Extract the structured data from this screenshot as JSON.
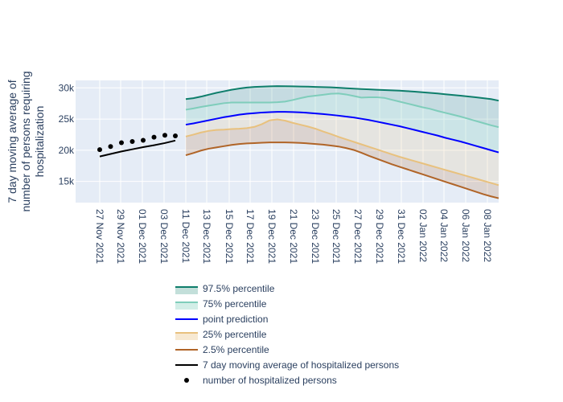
{
  "chart_data": {
    "type": "line",
    "title": "",
    "xlabel": "",
    "ylabel": [
      "7 day moving average of",
      "number of persons requiring",
      "hospitalization"
    ],
    "x_ticks": [
      "27 Nov 2021",
      "29 Nov 2021",
      "01 Dec 2021",
      "03 Dec 2021",
      "11 Dec 2021",
      "13 Dec 2021",
      "15 Dec 2021",
      "17 Dec 2021",
      "19 Dec 2021",
      "21 Dec 2021",
      "23 Dec 2021",
      "25 Dec 2021",
      "27 Dec 2021",
      "29 Dec 2021",
      "31 Dec 2021",
      "02 Jan 2022",
      "04 Jan 2022",
      "06 Jan 2022",
      "08 Jan 2022"
    ],
    "y_ticks": [
      "15k",
      "20k",
      "25k",
      "30k"
    ],
    "y_tick_values": [
      15000,
      20000,
      25000,
      30000
    ],
    "ylim": [
      11600,
      31200
    ],
    "grid": true,
    "legend_position": "bottom",
    "colors": {
      "plot_bg": "#e5ecf6",
      "p97_5": "#0e7e6b",
      "p75": "#7fcdbb",
      "point": "#0000ff",
      "p25": "#e8c17e",
      "p2_5": "#b06427",
      "observed_avg": "#000000",
      "observed_points": "#000000",
      "band_outer": "rgba(14,126,107,0.15)",
      "band_inner": "rgba(232,193,126,0.18)"
    },
    "observed": {
      "x": [
        0,
        1,
        2,
        3,
        4,
        5,
        6,
        7
      ],
      "moving_average": [
        19000,
        19400,
        19800,
        20150,
        20500,
        20800,
        21150,
        21550
      ],
      "hospitalized": [
        20100,
        20600,
        21200,
        21400,
        21600,
        22100,
        22400,
        22300
      ]
    },
    "forecast_x": [
      8,
      9,
      10,
      11,
      12,
      13,
      14,
      15,
      16,
      17,
      18,
      19,
      20,
      21,
      22,
      23,
      24,
      25,
      26,
      27,
      28,
      29,
      30,
      31,
      32,
      33,
      34,
      35,
      36,
      37,
      38,
      39,
      40,
      41,
      42,
      43,
      44,
      45,
      46,
      47,
      48,
      49
    ],
    "series": [
      {
        "name": "97.5% percentile",
        "key": "p97_5",
        "values": [
          28200,
          28350,
          28600,
          28900,
          29200,
          29450,
          29700,
          29900,
          30050,
          30150,
          30200,
          30250,
          30280,
          30270,
          30250,
          30220,
          30200,
          30160,
          30120,
          30080,
          30020,
          29950,
          29880,
          29820,
          29760,
          29700,
          29650,
          29600,
          29550,
          29480,
          29400,
          29300,
          29200,
          29100,
          28980,
          28870,
          28750,
          28620,
          28490,
          28350,
          28200,
          27950
        ]
      },
      {
        "name": "75% percentile",
        "key": "p75",
        "values": [
          26500,
          26700,
          26950,
          27150,
          27350,
          27550,
          27650,
          27650,
          27650,
          27650,
          27650,
          27650,
          27700,
          27800,
          28050,
          28350,
          28600,
          28750,
          28900,
          29050,
          29100,
          28950,
          28700,
          28450,
          28500,
          28500,
          28400,
          28100,
          27800,
          27500,
          27200,
          26900,
          26650,
          26300,
          26000,
          25700,
          25400,
          25050,
          24700,
          24350,
          24000,
          23700
        ]
      },
      {
        "name": "point prediction",
        "key": "point",
        "values": [
          24100,
          24300,
          24550,
          24800,
          25050,
          25300,
          25500,
          25700,
          25850,
          25950,
          26050,
          26100,
          26150,
          26150,
          26130,
          26080,
          26000,
          25900,
          25800,
          25680,
          25550,
          25400,
          25250,
          25050,
          24850,
          24600,
          24350,
          24100,
          23850,
          23550,
          23250,
          22950,
          22650,
          22350,
          22000,
          21700,
          21400,
          21050,
          20700,
          20350,
          20000,
          19650
        ]
      },
      {
        "name": "25% percentile",
        "key": "p25",
        "values": [
          22200,
          22500,
          22850,
          23100,
          23250,
          23300,
          23400,
          23450,
          23550,
          23750,
          24200,
          24800,
          24950,
          24750,
          24400,
          24100,
          23800,
          23450,
          23000,
          22600,
          22150,
          21750,
          21350,
          20950,
          20550,
          20150,
          19750,
          19350,
          18950,
          18600,
          18250,
          17900,
          17550,
          17200,
          16850,
          16500,
          16150,
          15800,
          15450,
          15100,
          14750,
          14400
        ]
      },
      {
        "name": "2.5% percentile",
        "key": "p2_5",
        "values": [
          19200,
          19550,
          19950,
          20250,
          20450,
          20650,
          20850,
          21000,
          21100,
          21150,
          21200,
          21250,
          21250,
          21250,
          21230,
          21180,
          21100,
          21000,
          20900,
          20750,
          20600,
          20350,
          20050,
          19600,
          19100,
          18650,
          18200,
          17750,
          17350,
          16950,
          16550,
          16150,
          15750,
          15350,
          14950,
          14550,
          14150,
          13750,
          13350,
          12950,
          12600,
          12300
        ]
      }
    ],
    "legend": [
      {
        "label": "97.5% percentile",
        "key": "p97_5",
        "style": "band"
      },
      {
        "label": "75% percentile",
        "key": "p75",
        "style": "band"
      },
      {
        "label": "point prediction",
        "key": "point",
        "style": "line"
      },
      {
        "label": "25% percentile",
        "key": "p25",
        "style": "band"
      },
      {
        "label": "2.5% percentile",
        "key": "p2_5",
        "style": "line"
      },
      {
        "label": "7 day moving average of hospitalized persons",
        "key": "observed_avg",
        "style": "line"
      },
      {
        "label": "number of hospitalized persons",
        "key": "observed_points",
        "style": "marker"
      }
    ]
  }
}
